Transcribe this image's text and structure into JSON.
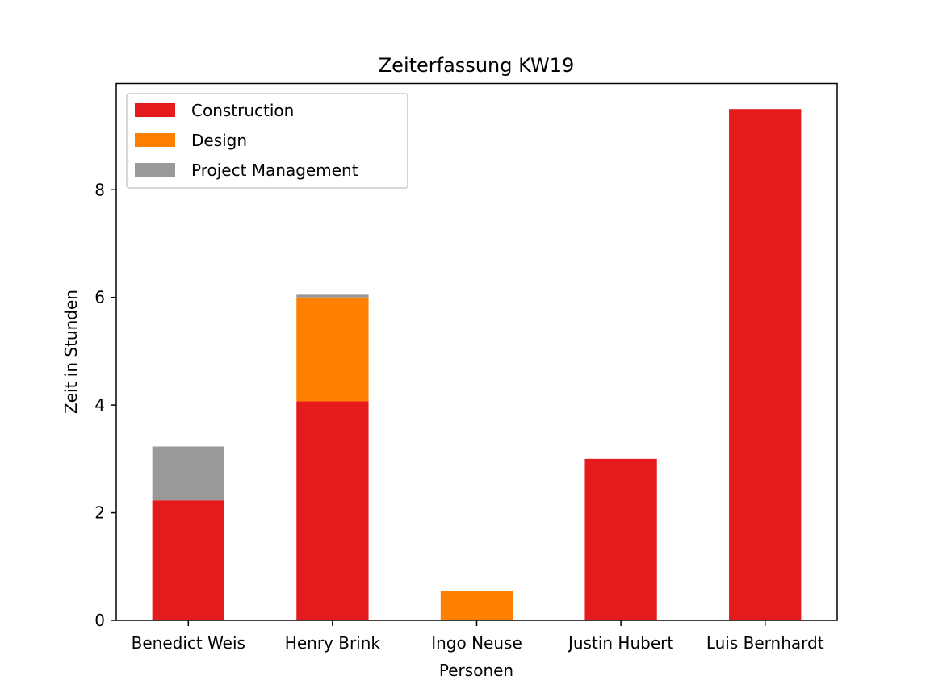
{
  "chart_data": {
    "type": "bar",
    "stacked": true,
    "title": "Zeiterfassung KW19",
    "xlabel": "Personen",
    "ylabel": "Zeit in Stunden",
    "categories": [
      "Benedict Weis",
      "Henry Brink",
      "Ingo Neuse",
      "Justin Hubert",
      "Luis Bernhardt"
    ],
    "series": [
      {
        "name": "Construction",
        "color": "#e41a1c",
        "values": [
          2.23,
          4.07,
          0,
          3.0,
          9.5
        ]
      },
      {
        "name": "Design",
        "color": "#ff7f00",
        "values": [
          0,
          1.93,
          0.55,
          0,
          0
        ]
      },
      {
        "name": "Project Management",
        "color": "#999999",
        "values": [
          1.0,
          0.05,
          0,
          0,
          0
        ]
      }
    ],
    "yticks": [
      0,
      2,
      4,
      6,
      8
    ],
    "ylim": [
      0,
      9.975
    ],
    "grid": false,
    "legend_position": "upper-left"
  }
}
